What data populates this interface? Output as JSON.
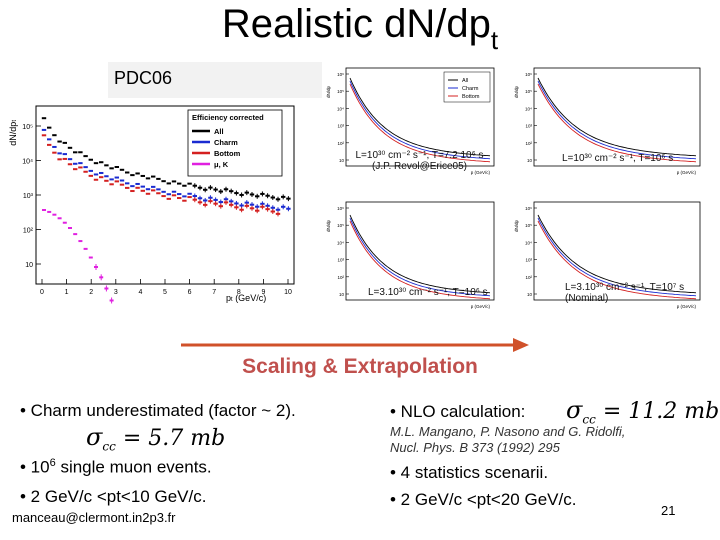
{
  "title": {
    "main": "Realistic dN/dp",
    "subscript": "t"
  },
  "subtitle_box": "PDC06",
  "main_plot": {
    "ylabel": "dN/dp",
    "ylabel_sub": "t",
    "xlabel": "p",
    "xlabel_sub": "t",
    "xunit": " (GeV/c)",
    "legend_title": "Efficiency corrected",
    "legend": [
      "All",
      "Charm",
      "Bottom",
      "μ, K"
    ],
    "x_ticks": [
      "0",
      "1",
      "2",
      "3",
      "4",
      "5",
      "6",
      "7",
      "8",
      "9",
      "10"
    ],
    "y_ticks": [
      "10⁵",
      "10⁴",
      "10³",
      "10²",
      "10"
    ],
    "colors": {
      "all": "#000000",
      "charm": "#1a2bd1",
      "bottom": "#d42020",
      "muK": "#e020e0"
    }
  },
  "small_plots": {
    "legend": [
      "All",
      "Charm",
      "Bottom"
    ],
    "ylabel": "dN/dp",
    "xlabel": "p (GeV/c)",
    "y_ticks": [
      "10⁶",
      "10⁵",
      "10⁴",
      "10³",
      "10²",
      "10"
    ]
  },
  "captions": {
    "tl_line1": "L=10³⁰ cm⁻² s⁻¹, T=7.2 10⁶ s",
    "tl_line2": "(J.P. Revol@Erice05)",
    "tr": "L=10³⁰ cm⁻² s⁻¹, T=10⁶ s",
    "bl": "L=3.10³⁰ cm⁻² s⁻¹, T=10⁶ s",
    "br_line1": "L=3.10³⁰ cm⁻² s⁻¹, T=10⁷ s",
    "br_line2": "(Nominal)"
  },
  "scaling_label": "Scaling & Extrapolation",
  "left": {
    "bullet1": "• Charm underestimated (factor ~ 2).",
    "formula_sigma": "σ",
    "formula_sub": "cc",
    "formula_value": " = 5.7 mb",
    "bullet2_pre": "• 10",
    "bullet2_sup": "6",
    "bullet2_post": " single muon events.",
    "bullet3": "•  2 GeV/c <pt<10 GeV/c."
  },
  "right": {
    "bullet1": "• NLO calculation:",
    "formula_sigma": "σ",
    "formula_sub": "cc",
    "formula_value": " = 11.2 mb",
    "ref_line1": "M.L. Mangano, P. Nasono and G. Ridolfi,",
    "ref_line2": "Nucl. Phys. B 373 (1992) 295",
    "bullet2": "• 4 statistics scenarii.",
    "bullet3": "•  2 GeV/c <pt<20 GeV/c."
  },
  "footer_email": "manceau@clermont.in2p3.fr",
  "page_number": "21",
  "accent_colors": {
    "arrow": "#d0512a",
    "scaling": "#c0504d"
  }
}
